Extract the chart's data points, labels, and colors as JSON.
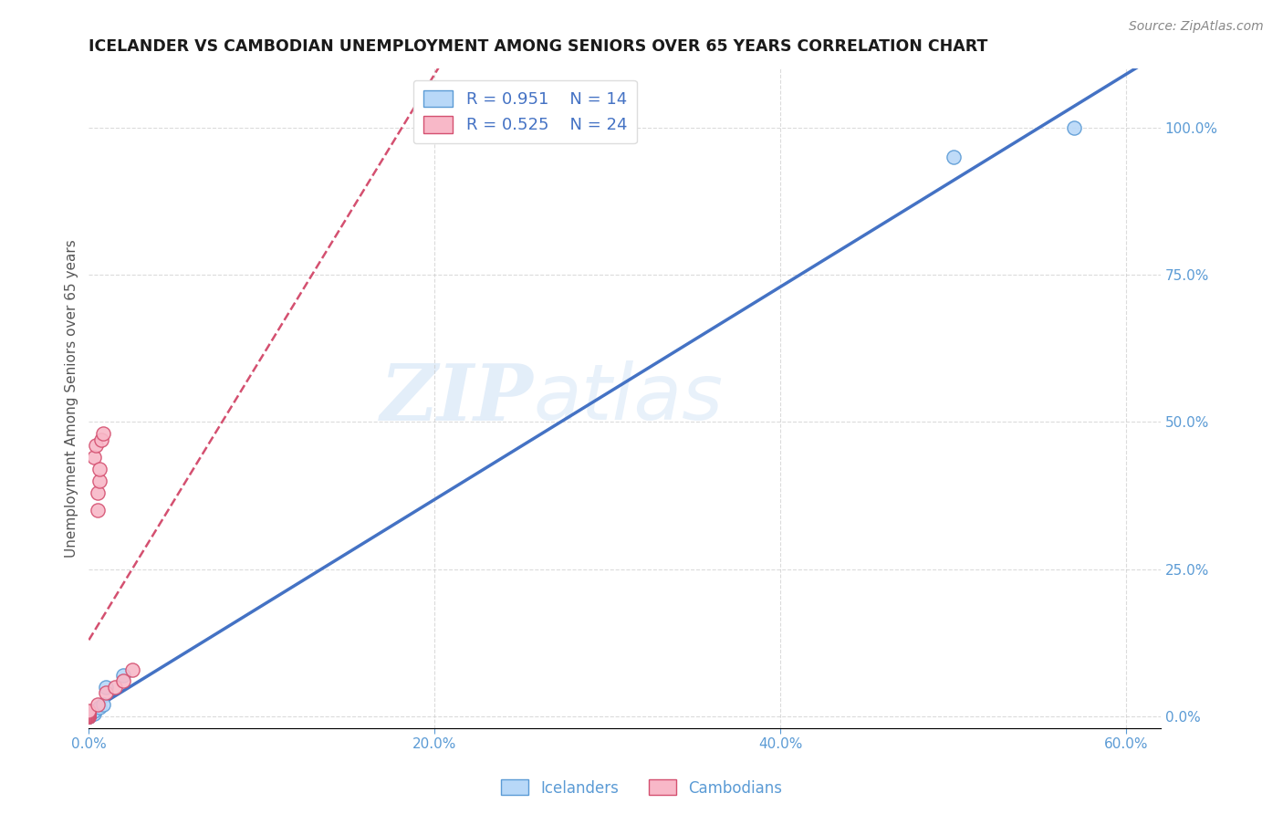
{
  "title": "ICELANDER VS CAMBODIAN UNEMPLOYMENT AMONG SENIORS OVER 65 YEARS CORRELATION CHART",
  "source_text": "Source: ZipAtlas.com",
  "ylabel": "Unemployment Among Seniors over 65 years",
  "tick_color": "#5b9bd5",
  "ylabel_color": "#555555",
  "background_color": "#ffffff",
  "watermark_text": "ZIP",
  "watermark_text2": "atlas",
  "xlim": [
    0.0,
    0.62
  ],
  "ylim": [
    -0.02,
    1.1
  ],
  "x_ticks": [
    0.0,
    0.2,
    0.4,
    0.6
  ],
  "x_tick_labels": [
    "0.0%",
    "20.0%",
    "40.0%",
    "60.0%"
  ],
  "y_ticks": [
    0.0,
    0.25,
    0.5,
    0.75,
    1.0
  ],
  "y_tick_labels": [
    "0.0%",
    "25.0%",
    "50.0%",
    "75.0%",
    "100.0%"
  ],
  "icelanders": {
    "x": [
      0.0,
      0.0,
      0.0,
      0.0,
      0.0,
      0.0,
      0.003,
      0.003,
      0.006,
      0.008,
      0.01,
      0.02,
      0.5,
      0.57
    ],
    "y": [
      0.0,
      0.0,
      0.0,
      0.0,
      0.002,
      0.004,
      0.005,
      0.01,
      0.015,
      0.02,
      0.05,
      0.07,
      0.95,
      1.0
    ],
    "color": "#b8d8f8",
    "edge_color": "#5b9bd5",
    "R": 0.951,
    "N": 14,
    "trend_color": "#4472c4",
    "trend_lw": 2.5,
    "trend_style": "solid"
  },
  "cambodians": {
    "x": [
      0.0,
      0.0,
      0.0,
      0.0,
      0.0,
      0.0,
      0.0,
      0.0,
      0.0,
      0.0,
      0.0,
      0.005,
      0.01,
      0.015,
      0.02,
      0.025,
      0.003,
      0.004,
      0.005,
      0.005,
      0.006,
      0.006,
      0.007,
      0.008
    ],
    "y": [
      0.0,
      0.0,
      0.0,
      0.0,
      0.002,
      0.003,
      0.004,
      0.005,
      0.007,
      0.008,
      0.01,
      0.02,
      0.04,
      0.05,
      0.06,
      0.08,
      0.44,
      0.46,
      0.35,
      0.38,
      0.4,
      0.42,
      0.47,
      0.48
    ],
    "color": "#f8b8c8",
    "edge_color": "#d45070",
    "R": 0.525,
    "N": 24,
    "trend_color": "#d45070",
    "trend_lw": 1.8,
    "trend_style": "dashed"
  },
  "legend_text_color": "#4472c4",
  "grid_color": "#cccccc",
  "grid_alpha": 0.7,
  "marker_size": 120
}
